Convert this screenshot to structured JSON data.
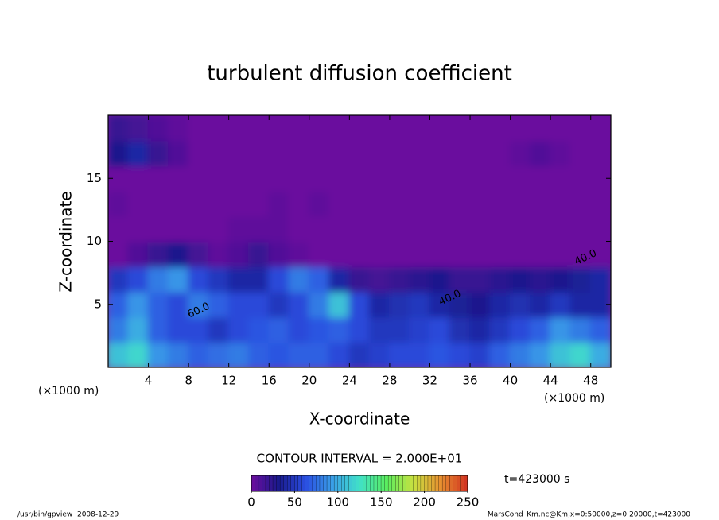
{
  "chart_data": {
    "type": "heatmap",
    "title": "turbulent diffusion coefficient",
    "x_label": "X-coordinate",
    "y_label": "Z-coordinate",
    "unit_label": "(×1000 m)",
    "xlim": [
      0,
      50
    ],
    "ylim": [
      0,
      20
    ],
    "xticks": [
      4,
      8,
      12,
      16,
      20,
      24,
      28,
      32,
      36,
      40,
      44,
      48
    ],
    "yticks": [
      5,
      10,
      15
    ],
    "x": [
      1,
      3,
      5,
      7,
      9,
      11,
      13,
      15,
      17,
      19,
      21,
      23,
      25,
      27,
      29,
      31,
      33,
      35,
      37,
      39,
      41,
      43,
      45,
      47,
      49
    ],
    "y": [
      1,
      3,
      5,
      7,
      9,
      11,
      13,
      15,
      17,
      19
    ],
    "z": [
      [
        110,
        120,
        90,
        80,
        70,
        75,
        80,
        70,
        65,
        70,
        70,
        60,
        50,
        55,
        60,
        60,
        65,
        60,
        55,
        70,
        80,
        90,
        110,
        120,
        100
      ],
      [
        80,
        100,
        70,
        60,
        60,
        50,
        60,
        65,
        70,
        60,
        65,
        70,
        60,
        50,
        50,
        55,
        60,
        45,
        40,
        50,
        60,
        70,
        90,
        80,
        70
      ],
      [
        70,
        90,
        70,
        60,
        80,
        70,
        60,
        60,
        50,
        60,
        80,
        110,
        60,
        40,
        45,
        50,
        40,
        35,
        30,
        40,
        45,
        40,
        50,
        40,
        40
      ],
      [
        50,
        60,
        80,
        90,
        60,
        50,
        40,
        40,
        60,
        80,
        70,
        40,
        20,
        15,
        20,
        25,
        30,
        20,
        20,
        25,
        30,
        25,
        30,
        35,
        40
      ],
      [
        0,
        10,
        20,
        30,
        15,
        5,
        10,
        20,
        10,
        5,
        0,
        0,
        0,
        0,
        0,
        0,
        0,
        0,
        0,
        0,
        0,
        0,
        0,
        0,
        0
      ],
      [
        0,
        0,
        0,
        0,
        0,
        0,
        5,
        5,
        5,
        0,
        0,
        0,
        0,
        0,
        0,
        0,
        0,
        0,
        0,
        0,
        0,
        0,
        0,
        0,
        0
      ],
      [
        5,
        0,
        0,
        0,
        0,
        0,
        0,
        0,
        5,
        0,
        5,
        0,
        0,
        0,
        0,
        0,
        0,
        0,
        0,
        0,
        0,
        0,
        0,
        0,
        0
      ],
      [
        0,
        0,
        0,
        0,
        0,
        0,
        0,
        0,
        0,
        0,
        0,
        0,
        0,
        0,
        0,
        0,
        0,
        0,
        0,
        0,
        0,
        0,
        0,
        0,
        0
      ],
      [
        30,
        40,
        20,
        10,
        0,
        0,
        0,
        0,
        0,
        0,
        0,
        0,
        0,
        0,
        0,
        0,
        0,
        0,
        0,
        0,
        5,
        10,
        5,
        0,
        0
      ],
      [
        20,
        15,
        10,
        5,
        0,
        0,
        0,
        0,
        0,
        0,
        0,
        0,
        0,
        0,
        0,
        0,
        0,
        0,
        0,
        0,
        0,
        0,
        0,
        0,
        0
      ]
    ],
    "colorscale": [
      "#6b0d9e",
      "#1a1a8c",
      "#2a4de0",
      "#3a9fe8",
      "#40e0c8",
      "#5aee60",
      "#c8e040",
      "#e89030",
      "#d03020"
    ],
    "colorbar": {
      "lim": [
        0,
        250
      ],
      "ticks": [
        0,
        50,
        100,
        150,
        200,
        250
      ]
    },
    "contour_interval_label": "CONTOUR INTERVAL = 2.000E+01",
    "time_label": "t=423000 s",
    "annotations": [
      {
        "text": "40.0",
        "x": 34,
        "y": 5.5
      },
      {
        "text": "40.0",
        "x": 47.5,
        "y": 8.7
      },
      {
        "text": "60.0",
        "x": 9,
        "y": 4.5
      }
    ],
    "footer_left": "/usr/bin/gpview  2008-12-29",
    "footer_right": "MarsCond_Km.nc@Km,x=0:50000,z=0:20000,t=423000"
  }
}
